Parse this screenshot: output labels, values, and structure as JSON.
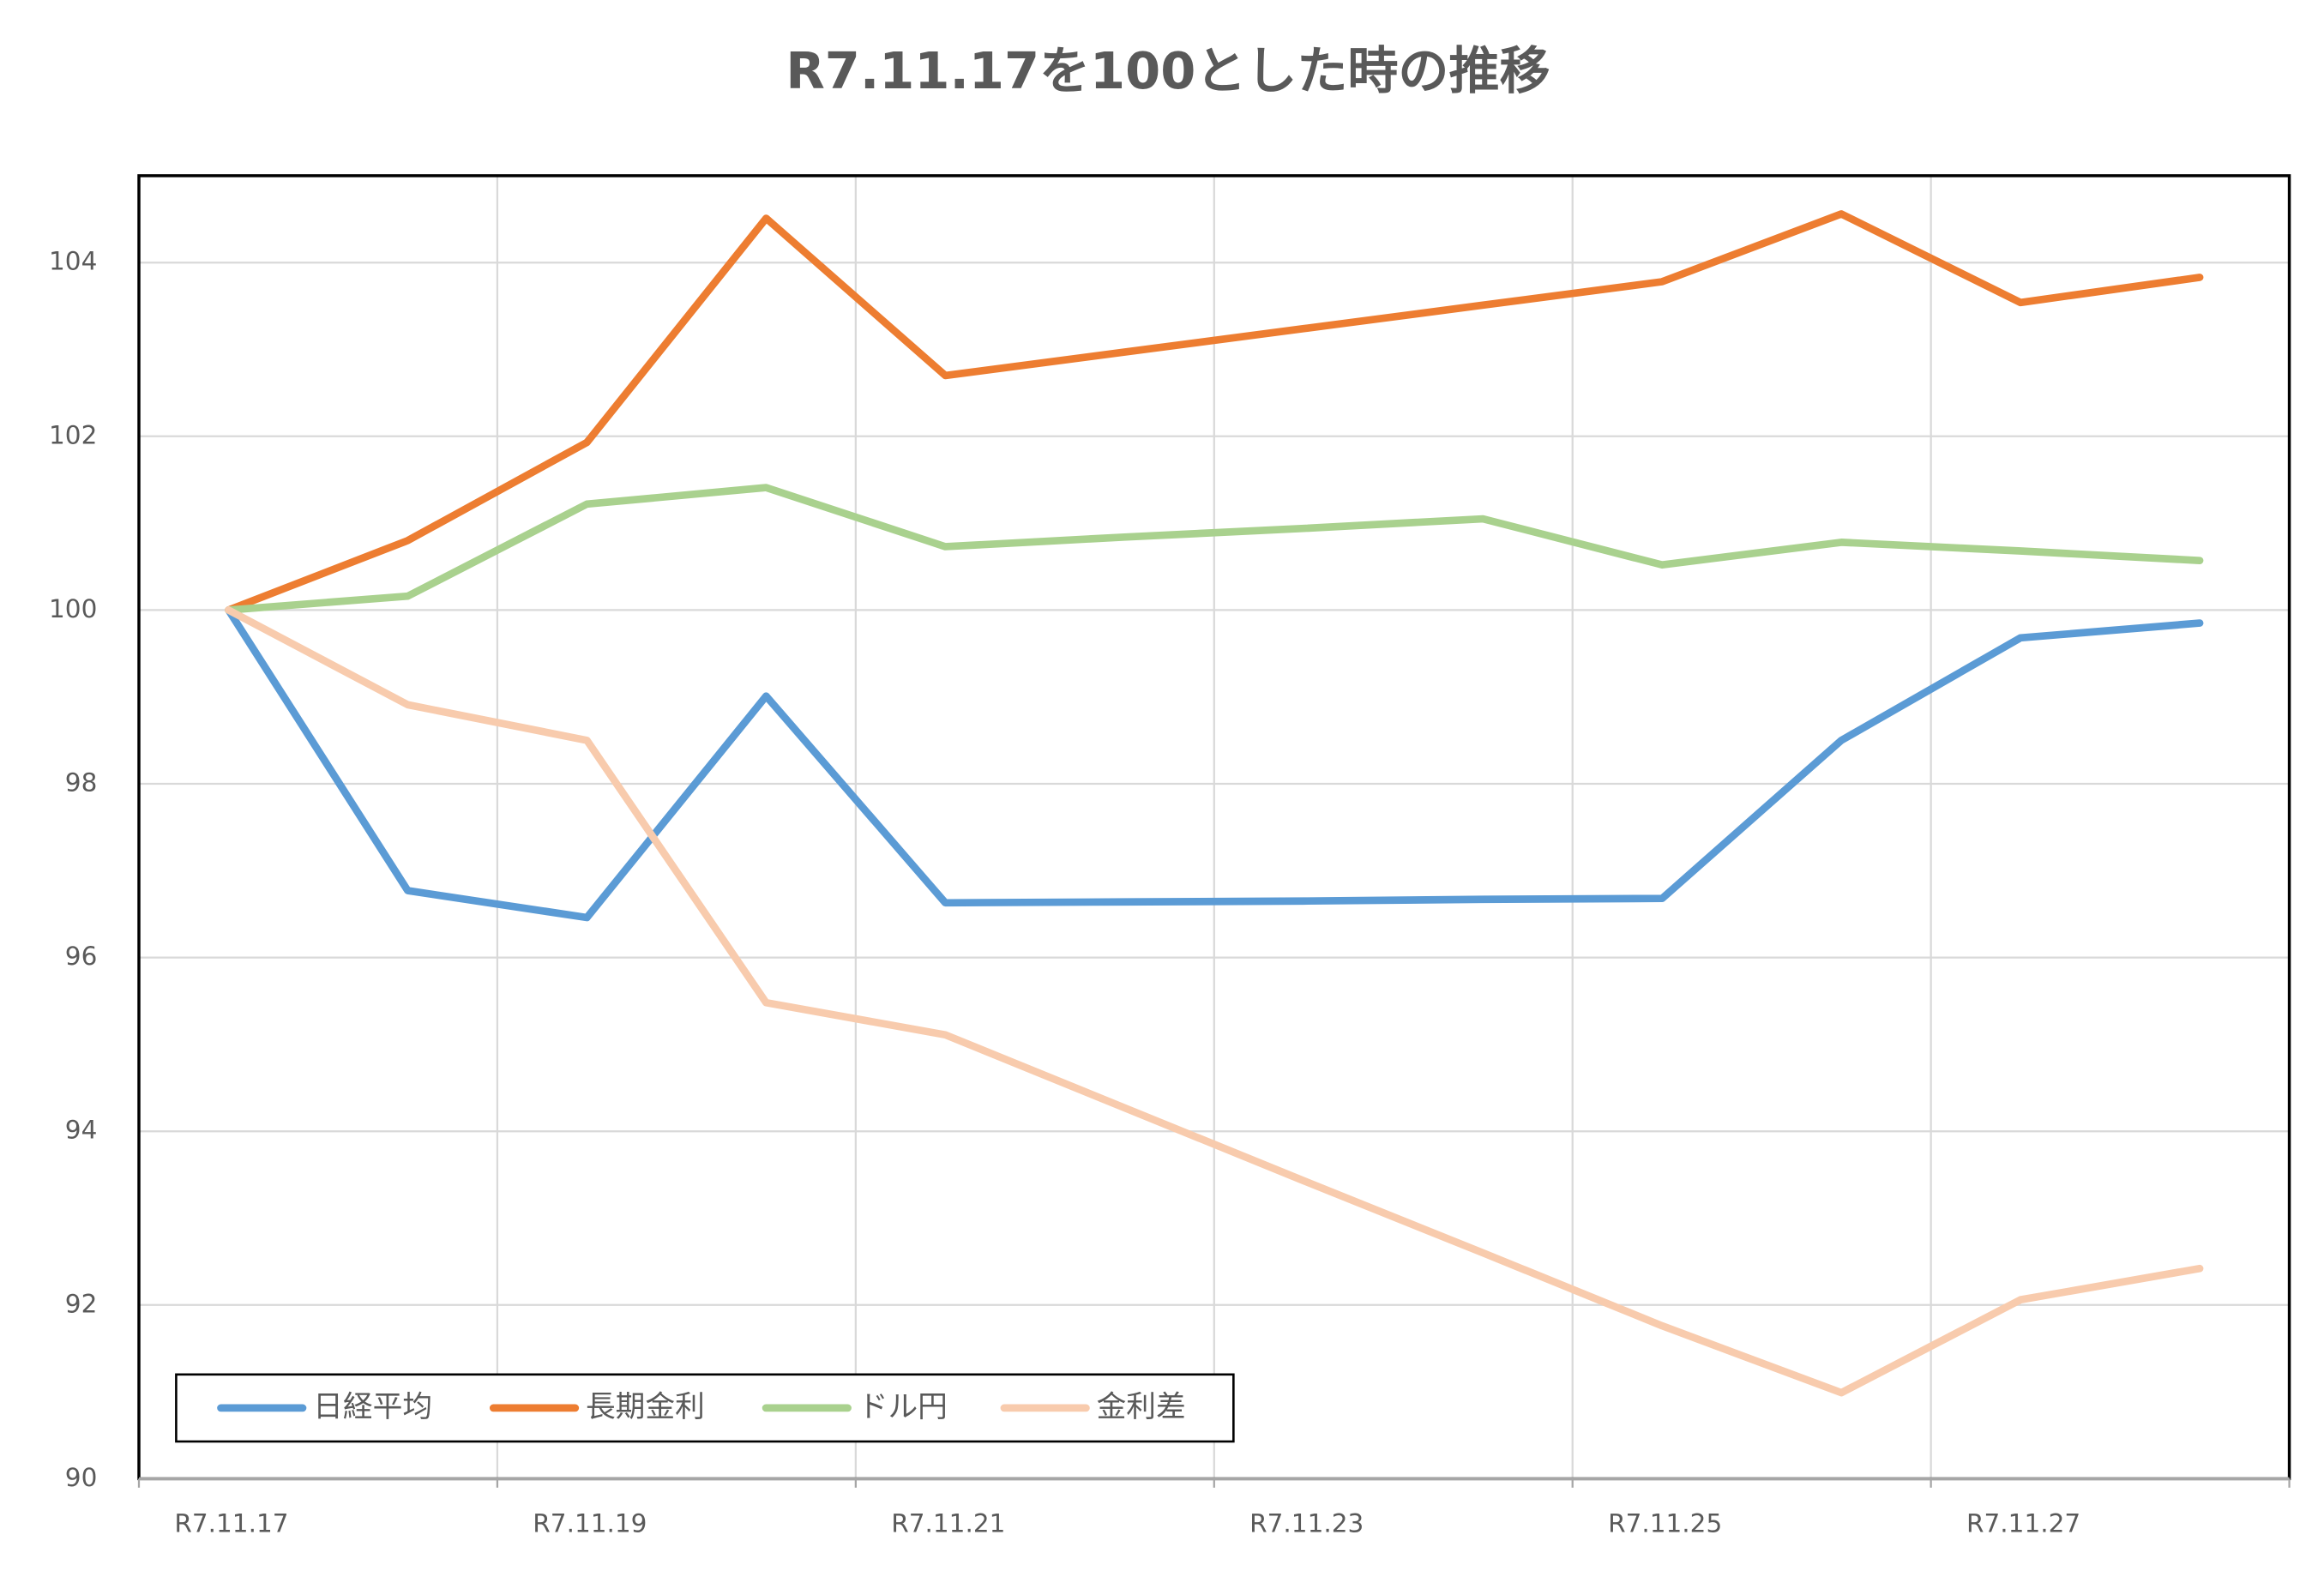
{
  "chart_data": {
    "type": "line",
    "title": "R7.11.17を100とした時の推移",
    "categories": [
      "R7.11.17",
      null,
      "R7.11.19",
      null,
      "R7.11.21",
      null,
      "R7.11.23",
      null,
      "R7.11.25",
      null,
      "R7.11.27",
      null
    ],
    "series": [
      {
        "name": "日経平均",
        "color": "#5b9bd5",
        "values": [
          100,
          96.77,
          96.46,
          99.01,
          96.63,
          96.64,
          96.65,
          96.67,
          96.68,
          98.5,
          99.68,
          99.85
        ]
      },
      {
        "name": "長期金利",
        "color": "#ed7d31",
        "values": [
          100,
          100.8,
          101.93,
          104.51,
          102.7,
          102.97,
          103.24,
          103.51,
          103.78,
          104.56,
          103.54,
          103.83
        ]
      },
      {
        "name": "ドル円",
        "color": "#a9d18e",
        "values": [
          100,
          100.16,
          101.22,
          101.41,
          100.73,
          100.84,
          100.94,
          101.05,
          100.52,
          100.78,
          100.68,
          100.57
        ]
      },
      {
        "name": "金利差",
        "color": "#f8cbad",
        "values": [
          100,
          98.91,
          98.5,
          95.48,
          95.11,
          94.27,
          93.43,
          92.6,
          91.76,
          90.99,
          92.06,
          92.42
        ]
      }
    ],
    "ylim": [
      90,
      105
    ],
    "yticks": [
      90,
      92,
      94,
      96,
      98,
      100,
      102,
      104
    ],
    "grid": true,
    "legend": "bottom-left"
  }
}
